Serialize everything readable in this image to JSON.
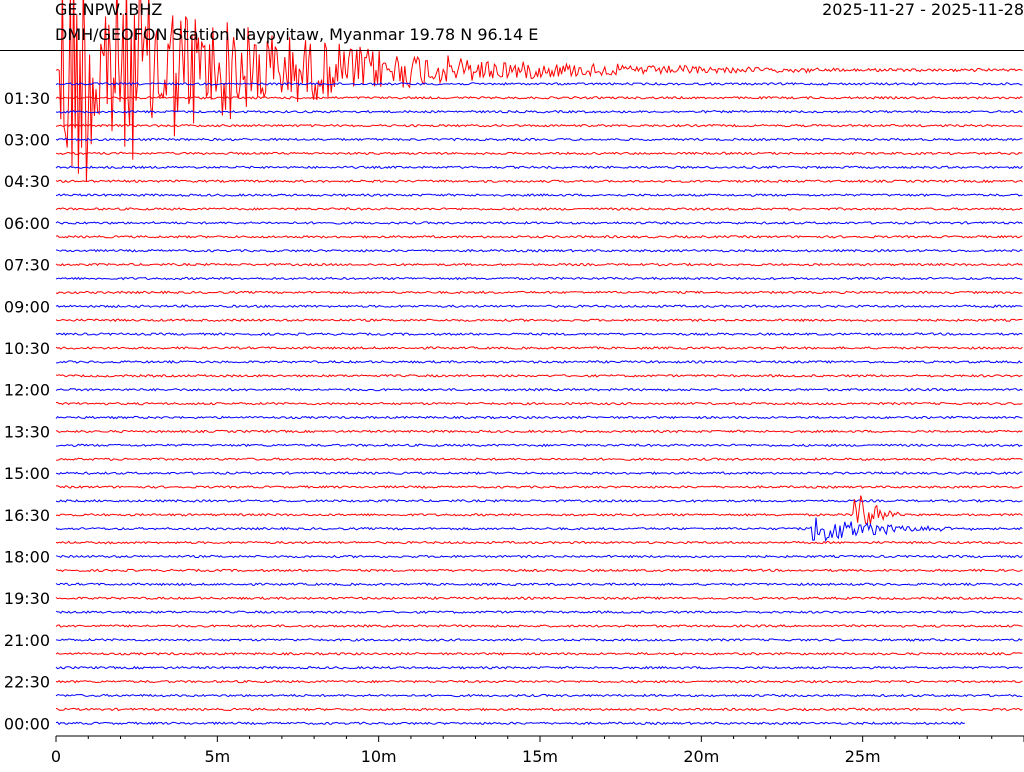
{
  "header": {
    "station_code": "GE.NPW..BHZ",
    "date_range": "2025-11-27 - 2025-11-28",
    "station_name": "DMH/GEOFON Station Naypyitaw, Myanmar  19.78 N 96.14 E"
  },
  "colors": {
    "trace_a": "#ff0000",
    "trace_b": "#0000ff",
    "axis": "#000000"
  },
  "chart_data": {
    "type": "line",
    "title": "GE.NPW..BHZ",
    "subtitle": "DMH/GEOFON Station Naypyitaw, Myanmar  19.78 N 96.14 E",
    "xlabel": "",
    "ylabel": "",
    "x_unit": "minutes",
    "xlim": [
      0,
      30
    ],
    "x_ticks": [
      {
        "value": 0,
        "label": "0"
      },
      {
        "value": 5,
        "label": "5m"
      },
      {
        "value": 10,
        "label": "10m"
      },
      {
        "value": 15,
        "label": "15m"
      },
      {
        "value": 20,
        "label": "20m"
      },
      {
        "value": 25,
        "label": "25m"
      }
    ],
    "x_minor_tick_step": 1,
    "row_minutes": 30,
    "row_count": 48,
    "row_start": "00:00",
    "y_tick_labels": [
      "01:30",
      "03:00",
      "04:30",
      "06:00",
      "07:30",
      "09:00",
      "10:30",
      "12:00",
      "13:30",
      "15:00",
      "16:30",
      "18:00",
      "19:30",
      "21:00",
      "22:30",
      "00:00"
    ],
    "row_colors": [
      "#ff0000",
      "#0000ff"
    ],
    "last_row_end_minute": 28.2,
    "events": [
      {
        "start_row": 0,
        "onset_minute": 0.1,
        "peak_amplitude_rows": 10,
        "coda_minutes": 15,
        "color": "#0000ff",
        "note": "large event with long coda"
      },
      {
        "start_row": 33,
        "onset_minute": 23.4,
        "peak_amplitude_rows": 1.4,
        "coda_minutes": 4.5,
        "color": "#0000ff",
        "note": "regional event"
      },
      {
        "start_row": 32,
        "onset_minute": 24.7,
        "peak_amplitude_rows": 2.5,
        "coda_minutes": 1.5,
        "color": "#ff0000",
        "note": "regional event secondary phase"
      }
    ],
    "grid": false,
    "legend": "none"
  }
}
